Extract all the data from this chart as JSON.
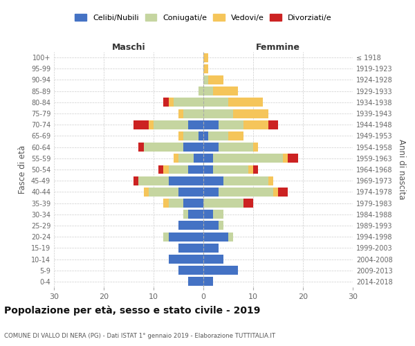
{
  "age_groups": [
    "0-4",
    "5-9",
    "10-14",
    "15-19",
    "20-24",
    "25-29",
    "30-34",
    "35-39",
    "40-44",
    "45-49",
    "50-54",
    "55-59",
    "60-64",
    "65-69",
    "70-74",
    "75-79",
    "80-84",
    "85-89",
    "90-94",
    "95-99",
    "100+"
  ],
  "birth_years": [
    "2014-2018",
    "2009-2013",
    "2004-2008",
    "1999-2003",
    "1994-1998",
    "1989-1993",
    "1984-1988",
    "1979-1983",
    "1974-1978",
    "1969-1973",
    "1964-1968",
    "1959-1963",
    "1954-1958",
    "1949-1953",
    "1944-1948",
    "1939-1943",
    "1934-1938",
    "1929-1933",
    "1924-1928",
    "1919-1923",
    "≤ 1918"
  ],
  "colors": {
    "celibi": "#4472C4",
    "coniugati": "#C5D5A0",
    "vedovi": "#F5C55A",
    "divorziati": "#CC2222"
  },
  "maschi": {
    "celibi": [
      3,
      5,
      7,
      5,
      7,
      5,
      3,
      4,
      5,
      7,
      3,
      2,
      4,
      1,
      3,
      0,
      0,
      0,
      0,
      0,
      0
    ],
    "coniugati": [
      0,
      0,
      0,
      0,
      1,
      0,
      1,
      3,
      6,
      6,
      4,
      3,
      8,
      3,
      7,
      4,
      6,
      1,
      0,
      0,
      0
    ],
    "vedovi": [
      0,
      0,
      0,
      0,
      0,
      0,
      0,
      1,
      1,
      0,
      1,
      1,
      0,
      1,
      1,
      1,
      1,
      0,
      0,
      0,
      0
    ],
    "divorziati": [
      0,
      0,
      0,
      0,
      0,
      0,
      0,
      0,
      0,
      1,
      1,
      0,
      1,
      0,
      3,
      0,
      1,
      0,
      0,
      0,
      0
    ]
  },
  "femmine": {
    "celibi": [
      2,
      7,
      4,
      3,
      5,
      3,
      2,
      0,
      3,
      4,
      2,
      2,
      3,
      1,
      3,
      0,
      0,
      0,
      0,
      0,
      0
    ],
    "coniugati": [
      0,
      0,
      0,
      0,
      1,
      1,
      2,
      8,
      11,
      9,
      7,
      14,
      7,
      4,
      5,
      6,
      5,
      2,
      1,
      0,
      0
    ],
    "vedovi": [
      0,
      0,
      0,
      0,
      0,
      0,
      0,
      0,
      1,
      1,
      1,
      1,
      1,
      3,
      5,
      7,
      7,
      5,
      3,
      1,
      1
    ],
    "divorziati": [
      0,
      0,
      0,
      0,
      0,
      0,
      0,
      2,
      2,
      0,
      1,
      2,
      0,
      0,
      2,
      0,
      0,
      0,
      0,
      0,
      0
    ]
  },
  "xlim": 30,
  "title": "Popolazione per età, sesso e stato civile - 2019",
  "subtitle": "COMUNE DI VALLO DI NERA (PG) - Dati ISTAT 1° gennaio 2019 - Elaborazione TUTTITALIA.IT",
  "xlabel_left": "Maschi",
  "xlabel_right": "Femmine",
  "ylabel_left": "Fasce di età",
  "ylabel_right": "Anni di nascita",
  "legend_labels": [
    "Celibi/Nubili",
    "Coniugati/e",
    "Vedovi/e",
    "Divorziati/e"
  ],
  "bg_color": "#ffffff",
  "grid_color": "#cccccc"
}
